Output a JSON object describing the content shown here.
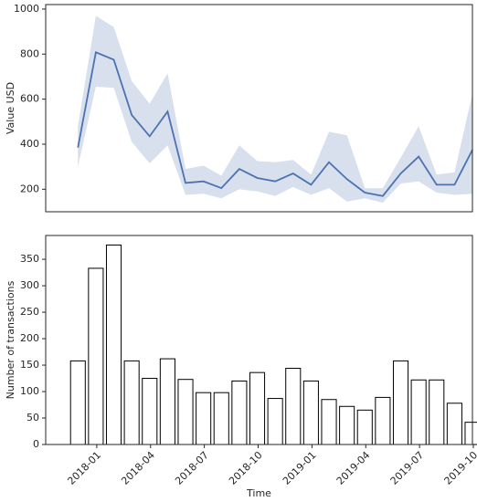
{
  "chart_data": [
    {
      "type": "line",
      "ylabel": "Value USD",
      "x": [
        "2017-11",
        "2017-12",
        "2018-01",
        "2018-02",
        "2018-03",
        "2018-04",
        "2018-05",
        "2018-06",
        "2018-07",
        "2018-08",
        "2018-09",
        "2018-10",
        "2018-11",
        "2018-12",
        "2019-01",
        "2019-02",
        "2019-03",
        "2019-04",
        "2019-05",
        "2019-06",
        "2019-07",
        "2019-08",
        "2019-09"
      ],
      "series": [
        {
          "color": "#4c72b0",
          "values": [
            385,
            808,
            775,
            530,
            435,
            545,
            228,
            235,
            205,
            290,
            250,
            235,
            270,
            220,
            320,
            245,
            185,
            170,
            270,
            345,
            220,
            220,
            375
          ],
          "lower": [
            300,
            655,
            650,
            410,
            315,
            395,
            175,
            180,
            160,
            200,
            190,
            170,
            210,
            175,
            205,
            145,
            160,
            140,
            225,
            235,
            185,
            175,
            180
          ],
          "upper": [
            480,
            970,
            920,
            680,
            580,
            715,
            290,
            305,
            260,
            395,
            325,
            320,
            330,
            265,
            455,
            440,
            205,
            205,
            340,
            480,
            265,
            275,
            625
          ]
        }
      ],
      "xlim": [
        "2017-10",
        "2019-10"
      ],
      "ylim": [
        100,
        1020
      ],
      "yticks": [
        200,
        400,
        600,
        800,
        1000
      ]
    },
    {
      "type": "bar",
      "ylabel": "Number of transactions",
      "xlabel": "Time",
      "x": [
        "2017-11",
        "2017-12",
        "2018-01",
        "2018-02",
        "2018-03",
        "2018-04",
        "2018-05",
        "2018-06",
        "2018-07",
        "2018-08",
        "2018-09",
        "2018-10",
        "2018-11",
        "2018-12",
        "2019-01",
        "2019-02",
        "2019-03",
        "2019-04",
        "2019-05",
        "2019-06",
        "2019-07",
        "2019-08",
        "2019-09"
      ],
      "values": [
        158,
        333,
        377,
        158,
        125,
        162,
        123,
        98,
        98,
        120,
        136,
        87,
        144,
        120,
        85,
        72,
        65,
        89,
        158,
        122,
        122,
        78,
        42
      ],
      "color": "#ffffff",
      "edgecolor": "#000000",
      "xlim": [
        "2017-10",
        "2019-10"
      ],
      "xticks": [
        "2018-01",
        "2018-04",
        "2018-07",
        "2018-10",
        "2019-01",
        "2019-04",
        "2019-07",
        "2019-10"
      ],
      "ylim": [
        0,
        395
      ],
      "yticks": [
        0,
        50,
        100,
        150,
        200,
        250,
        300,
        350
      ]
    }
  ]
}
